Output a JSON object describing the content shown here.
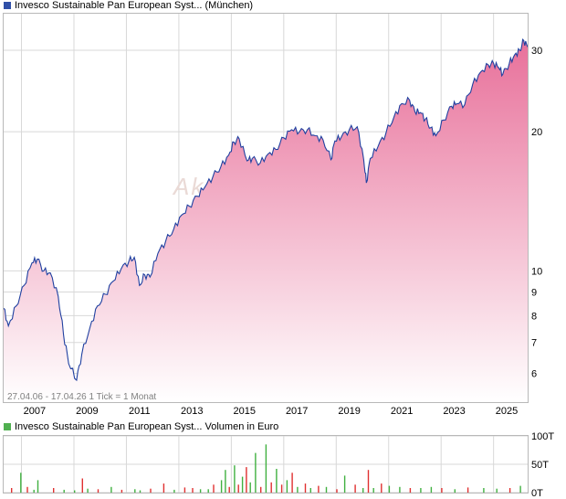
{
  "legend_price": {
    "label": "Invesco Sustainable Pan European Syst... (München)",
    "swatch_color": "#3050a8"
  },
  "legend_volume": {
    "label": "Invesco Sustainable Pan European Syst... Volumen in Euro",
    "swatch_color": "#50b050"
  },
  "watermark": "Aktie",
  "range_info": "27.04.06 - 17.04.26   1 Tick = 1 Monat",
  "colors": {
    "line": "#2040a0",
    "area_top": "#e8709a",
    "area_bottom": "#ffffff",
    "grid": "#d8d8d8",
    "vol_up": "#40b040",
    "vol_down": "#e03030"
  },
  "chart_data": [
    {
      "type": "area",
      "y_scale": "log",
      "ylim": [
        5.2,
        36
      ],
      "y_ticks": [
        6,
        7,
        8,
        9,
        10,
        20,
        30
      ],
      "x_range": [
        2006.32,
        2026.3
      ],
      "x_ticks": [
        "2007",
        "2009",
        "2011",
        "2013",
        "2015",
        "2017",
        "2019",
        "2021",
        "2023",
        "2025"
      ],
      "series": [
        {
          "x": [
            2006.32,
            2006.5,
            2006.8,
            2007.1,
            2007.4,
            2007.6,
            2007.85,
            2008.1,
            2008.4,
            2008.6,
            2008.8,
            2009.1,
            2009.3,
            2009.6,
            2009.9,
            2010.2,
            2010.5,
            2010.8,
            2011.1,
            2011.3,
            2011.5,
            2011.7,
            2011.9,
            2012.2,
            2012.5,
            2012.8,
            2013.1,
            2013.4,
            2013.7,
            2014.0,
            2014.3,
            2014.6,
            2014.9,
            2015.1,
            2015.3,
            2015.6,
            2015.8,
            2016.1,
            2016.4,
            2016.7,
            2017.0,
            2017.3,
            2017.6,
            2017.9,
            2018.2,
            2018.5,
            2018.8,
            2018.95,
            2019.2,
            2019.5,
            2019.8,
            2020.05,
            2020.15,
            2020.3,
            2020.6,
            2020.9,
            2021.2,
            2021.5,
            2021.8,
            2022.0,
            2022.2,
            2022.4,
            2022.6,
            2022.8,
            2023.1,
            2023.4,
            2023.6,
            2023.9,
            2024.2,
            2024.5,
            2024.8,
            2025.0,
            2025.2,
            2025.35,
            2025.6,
            2025.8,
            2026.0,
            2026.15,
            2026.3
          ],
          "y": [
            8.3,
            7.6,
            8.4,
            9.3,
            10.4,
            10.6,
            10.0,
            9.9,
            8.8,
            7.3,
            6.3,
            5.8,
            6.6,
            7.5,
            8.4,
            8.9,
            9.5,
            10.1,
            10.5,
            10.7,
            9.3,
            9.8,
            9.7,
            10.9,
            11.6,
            12.3,
            13.2,
            13.8,
            14.5,
            15.2,
            16.0,
            16.8,
            17.8,
            19.0,
            19.3,
            17.3,
            17.5,
            17.1,
            17.9,
            18.3,
            19.4,
            20.2,
            20.0,
            20.2,
            19.6,
            19.2,
            17.4,
            19.1,
            19.5,
            20.2,
            20.5,
            17.4,
            15.5,
            17.5,
            18.6,
            19.9,
            21.5,
            23.0,
            23.4,
            22.1,
            22.0,
            21.3,
            20.4,
            19.6,
            21.2,
            22.7,
            23.0,
            22.9,
            25.3,
            26.9,
            27.9,
            28.1,
            27.5,
            26.6,
            28.1,
            29.3,
            30.0,
            31.5,
            30.5
          ]
        }
      ]
    },
    {
      "type": "bar",
      "ylim": [
        0,
        100
      ],
      "y_ticks": [
        "100T",
        "50T",
        "0T"
      ],
      "y_tick_values": [
        100,
        50,
        0
      ],
      "x": [
        2006.6,
        2006.95,
        2007.2,
        2007.45,
        2007.6,
        2008.2,
        2008.6,
        2009.0,
        2009.3,
        2009.5,
        2009.9,
        2010.4,
        2010.8,
        2011.3,
        2011.5,
        2011.9,
        2012.4,
        2012.8,
        2013.2,
        2013.5,
        2013.8,
        2014.1,
        2014.3,
        2014.6,
        2014.75,
        2014.9,
        2015.1,
        2015.25,
        2015.4,
        2015.55,
        2015.7,
        2015.9,
        2016.1,
        2016.3,
        2016.5,
        2016.7,
        2016.9,
        2017.1,
        2017.3,
        2017.5,
        2017.8,
        2018.0,
        2018.3,
        2018.6,
        2019.0,
        2019.3,
        2019.7,
        2020.0,
        2020.2,
        2020.4,
        2020.7,
        2021.0,
        2021.4,
        2021.8,
        2022.2,
        2022.6,
        2023.0,
        2023.5,
        2024.0,
        2024.6,
        2025.1,
        2025.6,
        2026.0
      ],
      "values": [
        8,
        35,
        10,
        5,
        22,
        8,
        5,
        4,
        25,
        7,
        6,
        10,
        5,
        6,
        4,
        7,
        16,
        5,
        9,
        8,
        6,
        6,
        14,
        22,
        40,
        10,
        48,
        14,
        28,
        45,
        18,
        70,
        10,
        85,
        18,
        42,
        14,
        22,
        35,
        10,
        16,
        8,
        12,
        10,
        6,
        30,
        14,
        8,
        40,
        8,
        16,
        12,
        10,
        8,
        8,
        10,
        8,
        6,
        9,
        8,
        7,
        8,
        12
      ],
      "colors": [
        "r",
        "g",
        "r",
        "g",
        "g",
        "r",
        "g",
        "g",
        "r",
        "g",
        "r",
        "g",
        "r",
        "g",
        "g",
        "r",
        "r",
        "g",
        "r",
        "r",
        "g",
        "g",
        "r",
        "g",
        "g",
        "r",
        "g",
        "r",
        "g",
        "r",
        "g",
        "g",
        "r",
        "g",
        "r",
        "g",
        "r",
        "g",
        "r",
        "g",
        "r",
        "g",
        "r",
        "g",
        "r",
        "g",
        "r",
        "g",
        "r",
        "g",
        "r",
        "g",
        "g",
        "r",
        "g",
        "g",
        "r",
        "g",
        "r",
        "g",
        "g",
        "r",
        "g"
      ]
    }
  ]
}
